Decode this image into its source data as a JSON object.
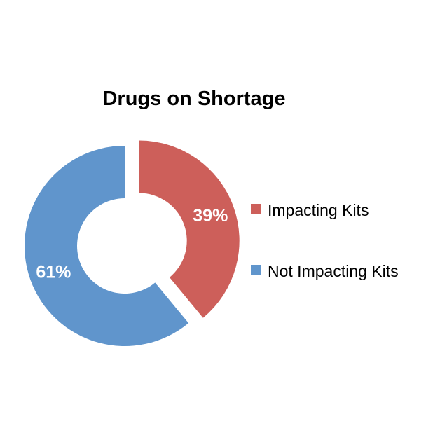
{
  "chart_data": {
    "type": "pie",
    "variant": "exploded-donut",
    "title": "Drugs on Shortage",
    "slices": [
      {
        "name": "Impacting Kits",
        "value": 39,
        "label": "39%",
        "color": "#cd5f5a"
      },
      {
        "name": "Not Impacting Kits",
        "value": 61,
        "label": "61%",
        "color": "#6095cc"
      }
    ],
    "legend_position": "right"
  }
}
